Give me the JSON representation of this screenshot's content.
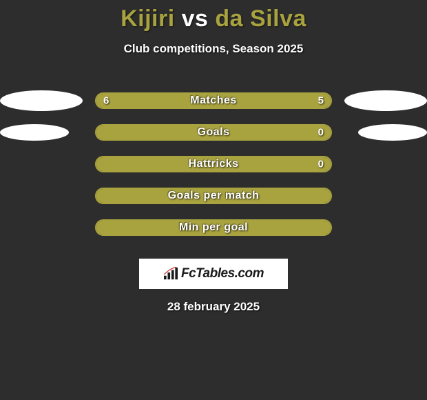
{
  "background_color": "#2d2d2d",
  "title": {
    "player1": "Kijiri",
    "vs": "vs",
    "player2": "da Silva",
    "player_color": "#a8a23f",
    "vs_color": "#ffffff",
    "fontsize": 34
  },
  "subtitle": {
    "text": "Club competitions, Season 2025",
    "color": "#ffffff",
    "fontsize": 17
  },
  "bar_style": {
    "track_width": 344,
    "track_height": 24,
    "border_radius": 12,
    "border_color": "#a8a23f",
    "fill_color_left": "#a8a23f",
    "fill_color_right": "#a8a23f",
    "label_color": "#ffffff",
    "label_fontsize": 16
  },
  "blob_style": {
    "color": "#ffffff",
    "base_width": 120,
    "base_height": 28
  },
  "stats": [
    {
      "label": "Matches",
      "left_value": "6",
      "right_value": "5",
      "left_pct": 54.5,
      "right_pct": 45.5,
      "left_blob_w": 120,
      "left_blob_h": 30,
      "right_blob_w": 120,
      "right_blob_h": 30,
      "show_blobs": true
    },
    {
      "label": "Goals",
      "left_value": "",
      "right_value": "0",
      "left_pct": 100,
      "right_pct": 0,
      "left_blob_w": 100,
      "left_blob_h": 24,
      "right_blob_w": 100,
      "right_blob_h": 24,
      "show_blobs": true
    },
    {
      "label": "Hattricks",
      "left_value": "",
      "right_value": "0",
      "left_pct": 100,
      "right_pct": 0,
      "show_blobs": false
    },
    {
      "label": "Goals per match",
      "left_value": "",
      "right_value": "",
      "left_pct": 100,
      "right_pct": 0,
      "show_blobs": false
    },
    {
      "label": "Min per goal",
      "left_value": "",
      "right_value": "",
      "left_pct": 100,
      "right_pct": 0,
      "show_blobs": false
    }
  ],
  "logo": {
    "text": "FcTables.com",
    "bg": "#ffffff",
    "text_color": "#1a1a1a"
  },
  "date": {
    "text": "28 february 2025",
    "color": "#ffffff",
    "fontsize": 17
  }
}
